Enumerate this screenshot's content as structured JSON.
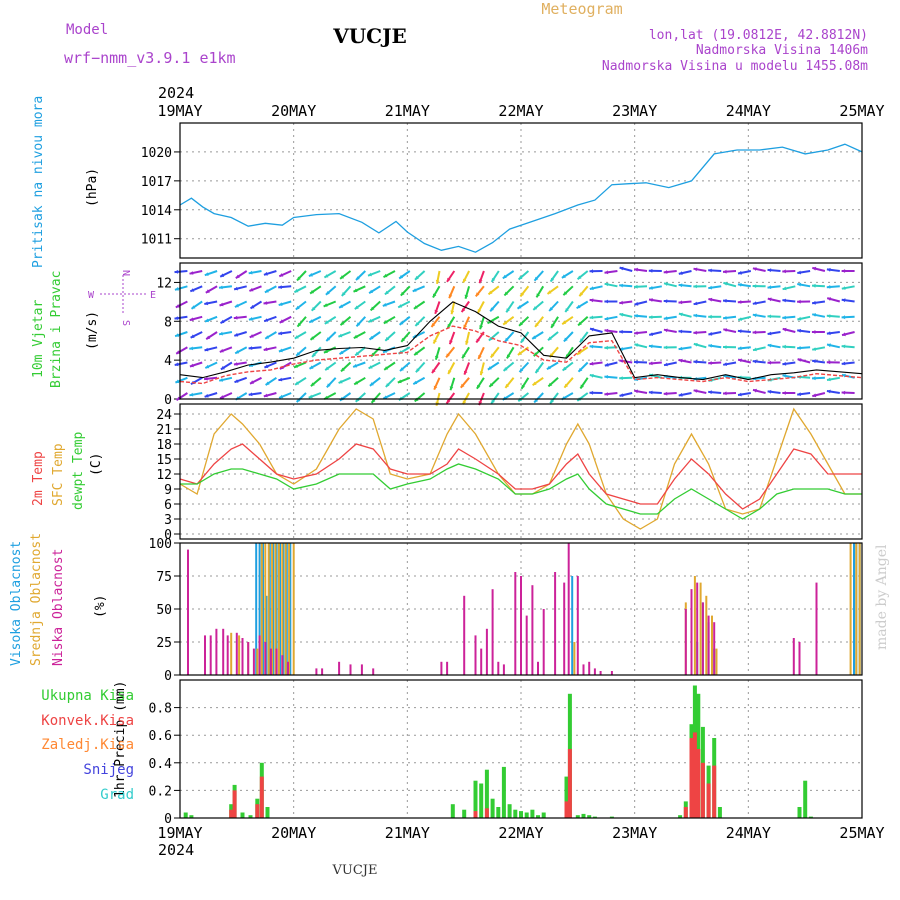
{
  "header": {
    "model_label": "Model",
    "model_name": "wrf−nmm_v3.9.1  e1km",
    "station_title": "VUCJE",
    "product": "Meteogram",
    "coords": "lon,lat (19.0812E, 42.8812N)",
    "elevation": "Nadmorska Visina 1406m",
    "model_elevation": "Nadmorska Visina u modelu 1455.08m",
    "footer_station": "VUCJE",
    "credit": "made by Angel"
  },
  "time_axis": {
    "year": "2024",
    "ticks": [
      "19MAY",
      "20MAY",
      "21MAY",
      "22MAY",
      "23MAY",
      "24MAY",
      "25MAY"
    ]
  },
  "colors": {
    "pressure": "#1e9fe0",
    "temp2m": "#ee4444",
    "sfc": "#e0a830",
    "dewpt": "#33cc33",
    "high_cloud": "#1e9fe0",
    "mid_cloud": "#e0a830",
    "low_cloud": "#cc2299",
    "total_precip": "#33cc33",
    "conv_precip": "#ee4444",
    "frz_precip": "#ff8833",
    "snow": "#4444dd",
    "hail": "#33cccc"
  },
  "panels": {
    "pressure": {
      "label": "Pritisak na nivou mora",
      "unit": "(hPa)"
    },
    "wind": {
      "label1": "10m Vjetar",
      "label2": "Brzina i Pravac",
      "unit": "(m/s)",
      "compass_n": "N",
      "compass_s": "S",
      "compass_w": "W",
      "compass_e": "E"
    },
    "temp": {
      "label1": "2m Temp",
      "label2": "SFC Temp",
      "label3": "dewpt Temp",
      "unit": "(C)"
    },
    "cloud": {
      "label1": "Visoka Oblacnost",
      "label2": "Srednja Oblacnost",
      "label3": "Niska Oblacnost",
      "unit": "(%)"
    },
    "precip": {
      "axis_label": "1hr Precip (mm)",
      "legend": [
        "Ukupna Kisa",
        "Konvek.Kisa",
        "Zaledj.Kisa",
        "Snijeg",
        "Grad"
      ]
    }
  },
  "chart_data": [
    {
      "type": "line",
      "name": "pressure",
      "ylim": [
        1009,
        1023
      ],
      "yticks": [
        1011,
        1014,
        1017,
        1020
      ],
      "x_days": [
        0,
        0.1,
        0.2,
        0.3,
        0.45,
        0.6,
        0.75,
        0.9,
        1.0,
        1.2,
        1.4,
        1.6,
        1.75,
        1.9,
        2.0,
        2.15,
        2.3,
        2.45,
        2.6,
        2.75,
        2.9,
        3.1,
        3.3,
        3.5,
        3.65,
        3.8,
        3.95,
        4.1,
        4.3,
        4.5,
        4.7,
        4.9,
        5.1,
        5.3,
        5.5,
        5.7,
        5.85,
        6.0
      ],
      "values": [
        1014.5,
        1015.2,
        1014.3,
        1013.6,
        1013.2,
        1012.3,
        1012.6,
        1012.4,
        1013.2,
        1013.5,
        1013.6,
        1012.7,
        1011.6,
        1012.8,
        1011.7,
        1010.5,
        1009.8,
        1010.2,
        1009.6,
        1010.6,
        1012.0,
        1012.8,
        1013.6,
        1014.5,
        1015.0,
        1016.6,
        1016.7,
        1016.8,
        1016.3,
        1017.0,
        1019.8,
        1020.2,
        1020.2,
        1020.5,
        1019.8,
        1020.2,
        1020.8,
        1020.0
      ]
    },
    {
      "type": "line",
      "name": "wind_speed",
      "ylim": [
        0,
        14
      ],
      "yticks": [
        0,
        4,
        8,
        12
      ],
      "x_days": [
        0,
        0.2,
        0.4,
        0.6,
        0.8,
        1.0,
        1.2,
        1.4,
        1.6,
        1.8,
        2.0,
        2.2,
        2.4,
        2.6,
        2.8,
        3.0,
        3.2,
        3.4,
        3.6,
        3.8,
        4.0,
        4.2,
        4.4,
        4.6,
        4.8,
        5.0,
        5.2,
        5.4,
        5.6,
        5.8,
        6.0
      ],
      "series": [
        {
          "values": [
            2.5,
            2.2,
            2.8,
            3.5,
            3.8,
            4.2,
            5.0,
            5.2,
            5.3,
            5.0,
            5.5,
            8.0,
            10.0,
            9.0,
            7.5,
            6.8,
            4.5,
            4.2,
            6.5,
            6.8,
            2.2,
            2.5,
            2.2,
            2.0,
            2.5,
            2.0,
            2.5,
            2.7,
            3.0,
            2.8,
            2.6
          ]
        },
        {
          "values": [
            1.8,
            1.6,
            2.4,
            2.8,
            3.0,
            3.6,
            4.0,
            4.2,
            4.4,
            4.6,
            4.8,
            6.5,
            7.5,
            7.0,
            6.0,
            5.5,
            4.0,
            3.8,
            5.8,
            6.0,
            2.0,
            2.2,
            2.0,
            1.8,
            2.2,
            1.8,
            2.0,
            2.2,
            2.6,
            2.4,
            2.2
          ]
        }
      ]
    },
    {
      "type": "line",
      "name": "temperature",
      "ylim": [
        -1,
        26
      ],
      "yticks": [
        0,
        3,
        6,
        9,
        12,
        15,
        18,
        21,
        24
      ],
      "x_days": [
        0,
        0.15,
        0.3,
        0.45,
        0.55,
        0.7,
        0.85,
        1.0,
        1.2,
        1.4,
        1.55,
        1.7,
        1.85,
        2.0,
        2.2,
        2.35,
        2.45,
        2.6,
        2.8,
        2.95,
        3.1,
        3.25,
        3.4,
        3.5,
        3.6,
        3.75,
        3.9,
        4.05,
        4.2,
        4.35,
        4.5,
        4.65,
        4.8,
        4.95,
        5.1,
        5.25,
        5.4,
        5.55,
        5.7,
        5.85,
        6.0
      ],
      "series": [
        {
          "values": [
            11,
            10,
            14,
            17,
            18,
            15,
            12,
            11,
            12,
            15,
            18,
            17,
            13,
            12,
            12,
            14,
            17,
            15,
            12,
            9,
            9,
            10,
            14,
            16,
            12,
            8,
            7,
            6,
            6,
            11,
            15,
            12,
            8,
            5,
            7,
            12,
            17,
            16,
            12,
            12,
            12
          ]
        },
        {
          "values": [
            10,
            8,
            20,
            24,
            22,
            18,
            12,
            10,
            13,
            21,
            25,
            23,
            12,
            11,
            12,
            20,
            24,
            20,
            12,
            8,
            8,
            10,
            18,
            22,
            18,
            8,
            3,
            1,
            3,
            14,
            20,
            14,
            5,
            4,
            5,
            15,
            25,
            20,
            14,
            8,
            8
          ]
        },
        {
          "values": [
            10,
            10,
            12,
            13,
            13,
            12,
            11,
            9,
            10,
            12,
            12,
            12,
            9,
            10,
            11,
            13,
            14,
            13,
            11,
            8,
            8,
            9,
            11,
            12,
            9,
            6,
            5,
            4,
            4,
            7,
            9,
            7,
            5,
            3,
            5,
            8,
            9,
            9,
            9,
            8,
            8
          ]
        }
      ]
    },
    {
      "type": "bar",
      "name": "cloudiness",
      "ylim": [
        0,
        100
      ],
      "yticks": [
        0,
        25,
        50,
        75,
        100
      ],
      "series": [
        {
          "name": "high",
          "x_days": [
            0.67,
            0.7,
            0.73,
            0.76,
            0.79,
            0.82,
            0.85,
            0.88,
            0.91,
            0.94,
            0.97,
            3.45,
            4.55,
            4.6,
            4.65,
            4.7,
            5.93,
            5.95,
            5.98
          ],
          "values": [
            100,
            100,
            100,
            60,
            100,
            100,
            100,
            100,
            100,
            100,
            100,
            75,
            25,
            55,
            40,
            20,
            100,
            100,
            100
          ]
        },
        {
          "name": "mid",
          "x_days": [
            0.45,
            0.52,
            0.6,
            0.68,
            0.72,
            0.75,
            0.78,
            0.81,
            0.84,
            0.87,
            0.9,
            0.93,
            0.96,
            1.0,
            3.47,
            4.45,
            4.5,
            4.53,
            4.58,
            4.63,
            4.68,
            4.72,
            5.9,
            5.95,
            5.98
          ],
          "values": [
            32,
            30,
            25,
            20,
            100,
            100,
            100,
            100,
            100,
            100,
            100,
            100,
            100,
            100,
            25,
            55,
            65,
            75,
            70,
            60,
            45,
            20,
            100,
            100,
            100
          ]
        },
        {
          "name": "low",
          "x_days": [
            0.07,
            0.22,
            0.27,
            0.32,
            0.38,
            0.42,
            0.5,
            0.55,
            0.6,
            0.65,
            0.7,
            0.75,
            0.8,
            0.85,
            0.9,
            0.95,
            1.2,
            1.25,
            1.4,
            1.5,
            1.6,
            1.7,
            2.3,
            2.35,
            2.5,
            2.6,
            2.65,
            2.7,
            2.75,
            2.8,
            2.85,
            2.95,
            3.0,
            3.05,
            3.1,
            3.15,
            3.2,
            3.3,
            3.38,
            3.42,
            3.5,
            3.55,
            3.6,
            3.65,
            3.7,
            3.8,
            4.45,
            4.5,
            4.55,
            4.6,
            4.65,
            4.7,
            5.4,
            5.45,
            5.6
          ],
          "values": [
            95,
            30,
            30,
            35,
            35,
            30,
            32,
            28,
            25,
            20,
            30,
            25,
            20,
            20,
            15,
            10,
            5,
            5,
            10,
            8,
            8,
            5,
            10,
            10,
            60,
            30,
            20,
            35,
            65,
            10,
            8,
            78,
            75,
            45,
            68,
            10,
            50,
            78,
            70,
            100,
            75,
            8,
            10,
            5,
            3,
            3,
            50,
            65,
            70,
            55,
            45,
            40,
            28,
            25,
            70
          ]
        }
      ]
    },
    {
      "type": "bar",
      "name": "precipitation",
      "ylim": [
        0,
        1.0
      ],
      "yticks": [
        0,
        0.2,
        0.4,
        0.6,
        0.8
      ],
      "series": [
        {
          "name": "total",
          "x_days": [
            0.05,
            0.1,
            0.45,
            0.48,
            0.55,
            0.62,
            0.68,
            0.72,
            0.77,
            2.4,
            2.5,
            2.6,
            2.65,
            2.7,
            2.75,
            2.8,
            2.85,
            2.9,
            2.95,
            3.0,
            3.05,
            3.1,
            3.15,
            3.2,
            3.4,
            3.43,
            3.5,
            3.55,
            3.6,
            3.65,
            3.8,
            4.4,
            4.45,
            4.5,
            4.53,
            4.56,
            4.6,
            4.65,
            4.7,
            4.75,
            5.45,
            5.5,
            5.55
          ],
          "values": [
            0.04,
            0.02,
            0.1,
            0.24,
            0.04,
            0.02,
            0.14,
            0.4,
            0.08,
            0.1,
            0.06,
            0.27,
            0.25,
            0.35,
            0.14,
            0.08,
            0.37,
            0.1,
            0.06,
            0.05,
            0.04,
            0.06,
            0.02,
            0.04,
            0.3,
            0.9,
            0.02,
            0.03,
            0.02,
            0.01,
            0.01,
            0.02,
            0.12,
            0.68,
            0.96,
            0.9,
            0.66,
            0.38,
            0.58,
            0.08,
            0.08,
            0.27,
            0.01
          ]
        },
        {
          "name": "convective",
          "x_days": [
            0.45,
            0.48,
            0.68,
            0.72,
            2.6,
            2.7,
            3.4,
            3.43,
            4.45,
            4.5,
            4.53,
            4.56,
            4.6,
            4.65,
            4.7
          ],
          "values": [
            0.06,
            0.2,
            0.1,
            0.3,
            0.05,
            0.07,
            0.12,
            0.5,
            0.08,
            0.58,
            0.62,
            0.5,
            0.4,
            0.25,
            0.38
          ]
        }
      ]
    }
  ]
}
